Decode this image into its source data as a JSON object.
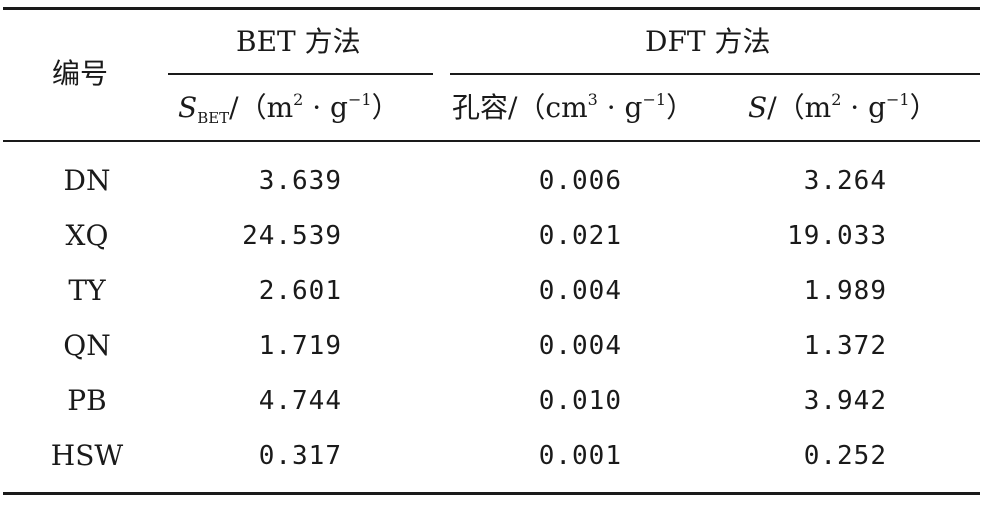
{
  "table": {
    "header": {
      "code_label": "编号",
      "group_bet": "BET 方法",
      "group_dft": "DFT 方法",
      "col_sbet": {
        "symbol": "S",
        "subscript": "BET",
        "unit_open": "/（m",
        "unit_exp1": "2",
        "unit_mid": " · g",
        "unit_exp2": "−1",
        "unit_close": "）"
      },
      "col_pore": {
        "label": "孔容/（cm",
        "unit_exp1": "3",
        "unit_mid": " · g",
        "unit_exp2": "−1",
        "unit_close": "）"
      },
      "col_s": {
        "symbol": "S",
        "unit_open": "/（m",
        "unit_exp1": "2",
        "unit_mid": " · g",
        "unit_exp2": "−1",
        "unit_close": "）"
      }
    },
    "rows": [
      {
        "code": "DN",
        "sbet": "3.639",
        "pore": "0.006",
        "s": "3.264"
      },
      {
        "code": "XQ",
        "sbet": "24.539",
        "pore": "0.021",
        "s": "19.033"
      },
      {
        "code": "TY",
        "sbet": "2.601",
        "pore": "0.004",
        "s": "1.989"
      },
      {
        "code": "QN",
        "sbet": "1.719",
        "pore": "0.004",
        "s": "1.372"
      },
      {
        "code": "PB",
        "sbet": "4.744",
        "pore": "0.010",
        "s": "3.942"
      },
      {
        "code": "HSW",
        "sbet": "0.317",
        "pore": "0.001",
        "s": "0.252"
      }
    ]
  }
}
